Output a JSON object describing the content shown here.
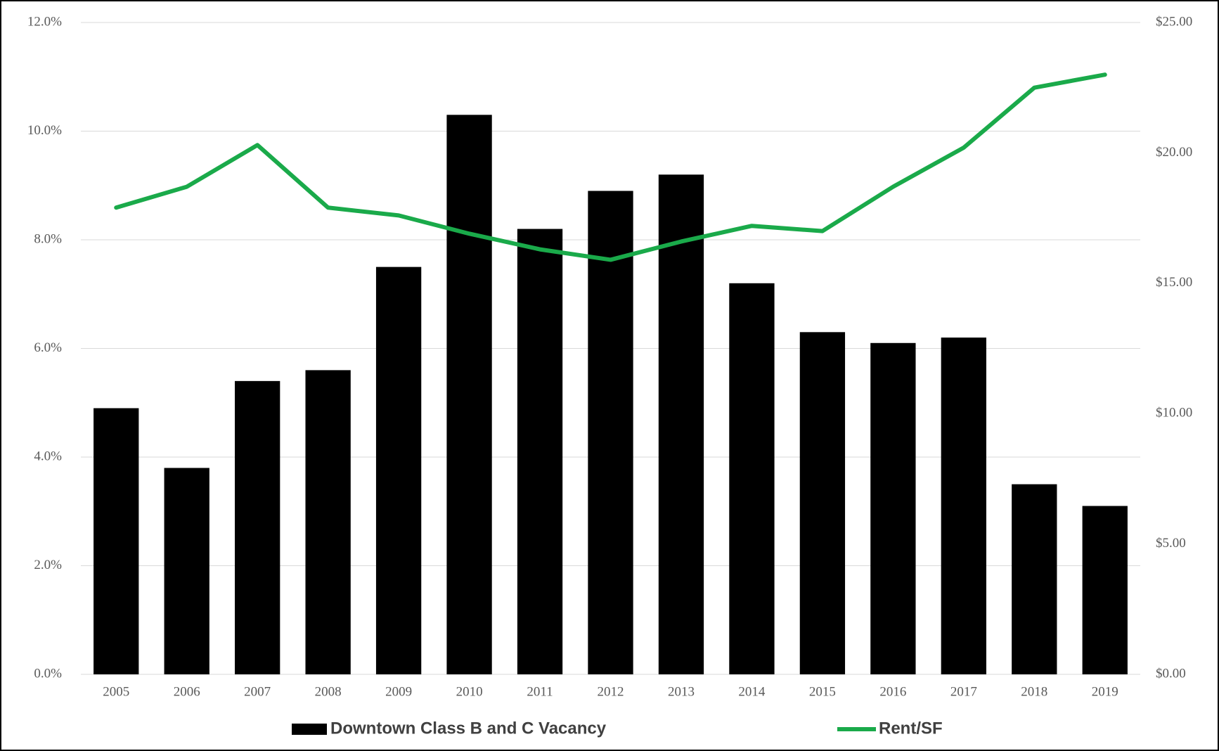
{
  "chart_data": {
    "type": "bar",
    "categories": [
      "2005",
      "2006",
      "2007",
      "2008",
      "2009",
      "2010",
      "2011",
      "2012",
      "2013",
      "2014",
      "2015",
      "2016",
      "2017",
      "2018",
      "2019"
    ],
    "series": [
      {
        "name": "Downtown Class B and C Vacancy",
        "type": "bar",
        "color": "#000000",
        "values": [
          4.9,
          3.8,
          5.4,
          5.6,
          7.5,
          10.3,
          8.2,
          8.9,
          9.2,
          7.2,
          6.3,
          6.1,
          6.2,
          3.5,
          3.1
        ]
      },
      {
        "name": "Rent/SF",
        "type": "line",
        "axis": "y2",
        "color": "#1aaa4a",
        "values": [
          17.9,
          18.7,
          20.3,
          17.9,
          17.6,
          16.9,
          16.3,
          15.9,
          16.6,
          17.2,
          17.0,
          18.7,
          20.2,
          22.5,
          23.0
        ]
      }
    ],
    "ylim": [
      0,
      12
    ],
    "yticks": [
      {
        "value": 0,
        "label": "0.0%"
      },
      {
        "value": 2,
        "label": "2.0%"
      },
      {
        "value": 4,
        "label": "4.0%"
      },
      {
        "value": 6,
        "label": "6.0%"
      },
      {
        "value": 8,
        "label": "8.0%"
      },
      {
        "value": 10,
        "label": "10.0%"
      },
      {
        "value": 12,
        "label": "12.0%"
      }
    ],
    "y2lim": [
      0,
      25
    ],
    "y2ticks": [
      {
        "value": 0,
        "label": "$0.00"
      },
      {
        "value": 5,
        "label": "$5.00"
      },
      {
        "value": 10,
        "label": "$10.00"
      },
      {
        "value": 15,
        "label": "$15.00"
      },
      {
        "value": 20,
        "label": "$20.00"
      },
      {
        "value": 25,
        "label": "$25.00"
      }
    ],
    "grid": true,
    "legend": "bottom"
  }
}
